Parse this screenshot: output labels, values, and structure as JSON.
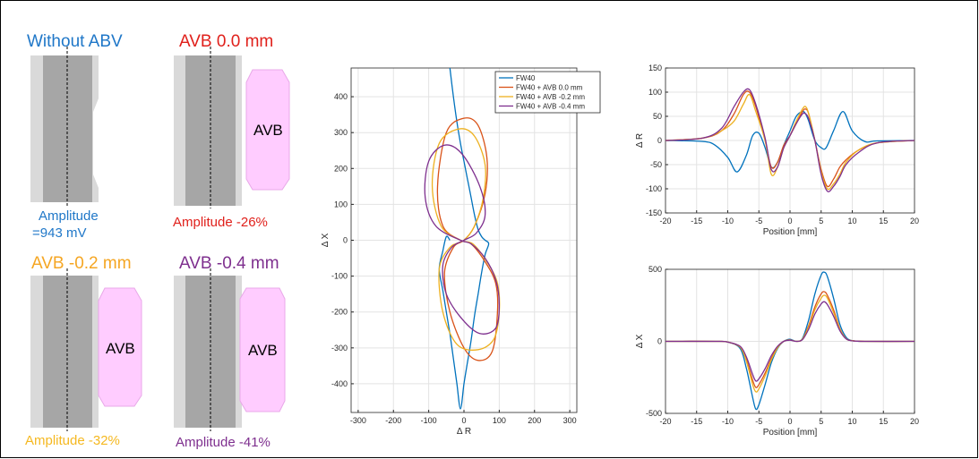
{
  "panels": [
    {
      "title": "Without ABV",
      "title_color": "#1F77C8",
      "amp_lines": [
        "Amplitude",
        "=943 mV"
      ],
      "amp_color": "#1F77C8",
      "avb": false,
      "avb_label": ""
    },
    {
      "title": "AVB 0.0 mm",
      "title_color": "#E0201B",
      "amp_lines": [
        "Amplitude -26%"
      ],
      "amp_color": "#E0201B",
      "avb": true,
      "avb_label": "AVB"
    },
    {
      "title": "AVB -0.2 mm",
      "title_color": "#F5A623",
      "amp_lines": [
        "Amplitude -32%"
      ],
      "amp_color": "#F5B820",
      "avb": true,
      "avb_label": "AVB"
    },
    {
      "title": "AVB -0.4 mm",
      "title_color": "#7E2F8E",
      "amp_lines": [
        "Amplitude -41%"
      ],
      "amp_color": "#7E2F8E",
      "avb": true,
      "avb_label": "AVB"
    }
  ],
  "colors": {
    "tube_outer": "#D9D9D9",
    "tube_inner": "#A6A6A6",
    "avb_fill": "#FFCCFF",
    "avb_stroke": "#E8A8E8"
  },
  "chart_data": [
    {
      "type": "line",
      "xlabel": "Δ R",
      "ylabel": "Δ X",
      "xlim": [
        -320,
        320
      ],
      "ylim": [
        -480,
        480
      ],
      "xticks": [
        -300,
        -200,
        -100,
        0,
        100,
        200,
        300
      ],
      "yticks": [
        -400,
        -300,
        -200,
        -100,
        0,
        100,
        200,
        300,
        400
      ],
      "grid": true,
      "legend_position": "top-right",
      "series": [
        {
          "name": "FW40",
          "color": "#0072BD",
          "kind": "lissajous",
          "x": [
            -40,
            -30,
            -20,
            -10,
            0,
            10,
            20,
            30,
            40,
            50,
            60,
            70,
            60,
            50,
            40,
            30,
            20,
            10,
            0,
            -10,
            -20,
            -30,
            -40,
            -50,
            -60,
            -70,
            -60,
            -50,
            -40
          ],
          "y": [
            480,
            400,
            330,
            270,
            220,
            170,
            120,
            70,
            30,
            10,
            0,
            -10,
            -40,
            -90,
            -150,
            -210,
            -280,
            -340,
            -400,
            -470,
            -400,
            -330,
            -260,
            -200,
            -140,
            -80,
            -30,
            10,
            0
          ]
        },
        {
          "name": "FW40 + AVB 0.0 mm",
          "color": "#D95319",
          "kind": "loop",
          "x": [
            -10,
            -60,
            -75,
            -50,
            0,
            40,
            65,
            60,
            30,
            0,
            -30,
            -55,
            -40,
            0,
            40,
            80,
            95,
            90,
            60,
            20
          ],
          "y": [
            0,
            40,
            150,
            300,
            340,
            320,
            230,
            130,
            40,
            0,
            -20,
            -90,
            -200,
            -300,
            -335,
            -310,
            -200,
            -120,
            -60,
            -10
          ]
        },
        {
          "name": "FW40 + AVB -0.2 mm",
          "color": "#EDB120",
          "kind": "loop",
          "x": [
            -10,
            -65,
            -90,
            -70,
            -15,
            30,
            60,
            55,
            30,
            0,
            -40,
            -70,
            -60,
            -20,
            40,
            85,
            100,
            95,
            65,
            25
          ],
          "y": [
            0,
            40,
            150,
            270,
            310,
            290,
            210,
            120,
            40,
            0,
            -20,
            -80,
            -200,
            -290,
            -305,
            -275,
            -200,
            -120,
            -60,
            -10
          ]
        },
        {
          "name": "FW40 + AVB -0.4 mm",
          "color": "#7E2F8E",
          "kind": "loop",
          "x": [
            -10,
            -80,
            -110,
            -100,
            -55,
            -5,
            45,
            60,
            35,
            0,
            -35,
            -60,
            -50,
            -5,
            45,
            90,
            100,
            90,
            60,
            20
          ],
          "y": [
            0,
            40,
            120,
            220,
            265,
            240,
            150,
            70,
            20,
            0,
            -20,
            -70,
            -150,
            -220,
            -260,
            -245,
            -180,
            -110,
            -50,
            -10
          ]
        }
      ]
    },
    {
      "type": "line",
      "xlabel": "Position [mm]",
      "ylabel": "Δ R",
      "xlim": [
        -20,
        20
      ],
      "ylim": [
        -150,
        150
      ],
      "xticks": [
        -20,
        -15,
        -10,
        -5,
        0,
        5,
        10,
        15,
        20
      ],
      "yticks": [
        -150,
        -100,
        -50,
        0,
        50,
        100,
        150
      ],
      "grid": true,
      "series": [
        {
          "name": "FW40",
          "color": "#0072BD",
          "x": [
            -20,
            -14,
            -12,
            -10,
            -8.5,
            -7,
            -6,
            -5,
            -4,
            -3,
            -2,
            -1,
            0,
            1,
            2,
            2.5,
            3,
            4,
            5,
            5.8,
            7,
            8.5,
            10,
            12,
            14,
            20
          ],
          "y": [
            0,
            -2,
            -10,
            -35,
            -65,
            -30,
            10,
            15,
            -15,
            -55,
            -45,
            -10,
            20,
            50,
            60,
            55,
            40,
            0,
            -15,
            -15,
            20,
            60,
            20,
            -2,
            -1,
            0
          ]
        },
        {
          "name": "FW40 + AVB 0.0 mm",
          "color": "#D95319",
          "x": [
            -20,
            -14,
            -11,
            -9,
            -7.5,
            -6.5,
            -5.5,
            -4,
            -3,
            -2,
            -1,
            0,
            1,
            2,
            2.5,
            3,
            4,
            5,
            6,
            7,
            8,
            9,
            11,
            14,
            20
          ],
          "y": [
            0,
            5,
            20,
            55,
            95,
            100,
            70,
            0,
            -55,
            -45,
            -10,
            10,
            35,
            60,
            65,
            55,
            0,
            -60,
            -95,
            -80,
            -55,
            -40,
            -20,
            -5,
            0
          ]
        },
        {
          "name": "FW40 + AVB -0.2 mm",
          "color": "#EDB120",
          "x": [
            -20,
            -14,
            -11,
            -9,
            -7.5,
            -6.5,
            -5.5,
            -4,
            -3,
            -2,
            -1,
            0,
            1,
            2,
            2.5,
            3,
            4,
            5,
            6,
            7,
            8,
            9,
            11,
            14,
            20
          ],
          "y": [
            0,
            5,
            20,
            40,
            75,
            95,
            60,
            0,
            -70,
            -55,
            -15,
            10,
            40,
            65,
            70,
            55,
            0,
            -65,
            -100,
            -90,
            -70,
            -45,
            -20,
            -5,
            0
          ]
        },
        {
          "name": "FW40 + AVB -0.4 mm",
          "color": "#7E2F8E",
          "x": [
            -20,
            -14,
            -11,
            -9,
            -7.5,
            -6.5,
            -5.5,
            -4,
            -3,
            -2,
            -1,
            0,
            1,
            2,
            2.5,
            3,
            4,
            5,
            6,
            7,
            8,
            9,
            11,
            14,
            20
          ],
          "y": [
            0,
            5,
            25,
            70,
            100,
            105,
            75,
            5,
            -60,
            -55,
            -15,
            10,
            35,
            55,
            55,
            45,
            0,
            -70,
            -105,
            -95,
            -75,
            -50,
            -25,
            -5,
            0
          ]
        }
      ]
    },
    {
      "type": "line",
      "xlabel": "Position [mm]",
      "ylabel": "Δ X",
      "xlim": [
        -20,
        20
      ],
      "ylim": [
        -500,
        500
      ],
      "xticks": [
        -20,
        -15,
        -10,
        -5,
        0,
        5,
        10,
        15,
        20
      ],
      "yticks": [
        -500,
        0,
        500
      ],
      "grid": true,
      "series": [
        {
          "name": "FW40",
          "color": "#0072BD",
          "x": [
            -20,
            -12,
            -10,
            -8,
            -7,
            -6,
            -5.5,
            -5,
            -4,
            -3,
            -2,
            -1,
            0,
            1,
            2,
            3,
            4,
            5,
            5.5,
            6,
            7,
            8,
            9,
            10,
            12,
            20
          ],
          "y": [
            0,
            0,
            -5,
            -50,
            -190,
            -390,
            -470,
            -440,
            -300,
            -150,
            -50,
            0,
            15,
            0,
            20,
            150,
            330,
            460,
            480,
            450,
            300,
            120,
            30,
            5,
            0,
            0
          ]
        },
        {
          "name": "FW40 + AVB 0.0 mm",
          "color": "#D95319",
          "x": [
            -20,
            -12,
            -10,
            -8,
            -7,
            -6,
            -5.5,
            -5,
            -4,
            -3,
            -2,
            -1,
            0,
            1,
            2,
            3,
            4,
            5,
            5.5,
            6,
            7,
            8,
            9,
            10,
            12,
            20
          ],
          "y": [
            0,
            0,
            -5,
            -40,
            -130,
            -270,
            -320,
            -300,
            -220,
            -120,
            -40,
            0,
            10,
            0,
            15,
            110,
            240,
            330,
            345,
            320,
            220,
            90,
            20,
            5,
            0,
            0
          ]
        },
        {
          "name": "FW40 + AVB -0.2 mm",
          "color": "#EDB120",
          "x": [
            -20,
            -12,
            -10,
            -8,
            -7,
            -6,
            -5.5,
            -5,
            -4,
            -3,
            -2,
            -1,
            0,
            1,
            2,
            3,
            4,
            5,
            5.5,
            6,
            7,
            8,
            9,
            10,
            12,
            20
          ],
          "y": [
            0,
            0,
            -5,
            -40,
            -140,
            -300,
            -350,
            -330,
            -240,
            -130,
            -45,
            0,
            10,
            0,
            15,
            100,
            220,
            300,
            320,
            300,
            200,
            85,
            20,
            5,
            0,
            0
          ]
        },
        {
          "name": "FW40 + AVB -0.4 mm",
          "color": "#7E2F8E",
          "x": [
            -20,
            -12,
            -10,
            -8,
            -7,
            -6,
            -5.5,
            -5,
            -4,
            -3,
            -2,
            -1,
            0,
            1,
            2,
            3,
            4,
            5,
            5.5,
            6,
            7,
            8,
            9,
            10,
            12,
            20
          ],
          "y": [
            0,
            0,
            -5,
            -35,
            -110,
            -230,
            -275,
            -260,
            -190,
            -100,
            -35,
            0,
            8,
            0,
            12,
            85,
            190,
            260,
            275,
            255,
            175,
            75,
            18,
            4,
            0,
            0
          ]
        }
      ]
    }
  ]
}
